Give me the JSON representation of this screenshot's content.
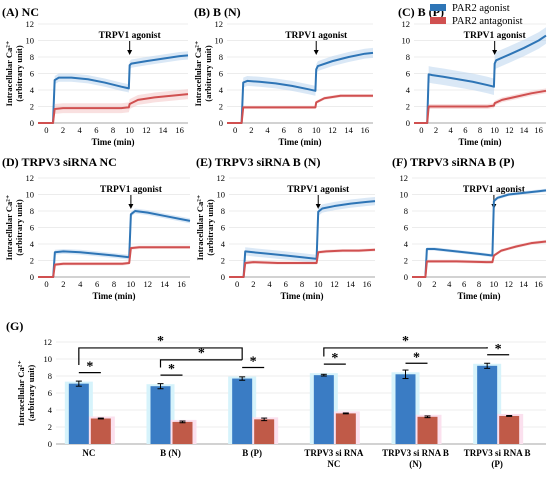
{
  "colors": {
    "agonist": "#2e75b6",
    "antagonist": "#d05050",
    "agonist_bar": "#3a7cc4",
    "antagonist_bar": "#c05a48",
    "agonist_band": "#bcd6ee",
    "antagonist_band": "#f4c6c6",
    "bar_glow_agonist": "#d6f3fb",
    "bar_glow_antagonist": "#fbe0ee"
  },
  "legend": {
    "agonist": "PAR2 agonist",
    "antagonist": "PAR2 antagonist"
  },
  "chart_data": [
    {
      "id": "A",
      "type": "line",
      "title": "(A) NC",
      "xlabel": "Time (min)",
      "ylabel": "Intracellular Ca²⁺ (arbitrary unit)",
      "xlim": [
        -1,
        17
      ],
      "ylim": [
        0,
        12
      ],
      "xticks": [
        0,
        2,
        4,
        6,
        8,
        10,
        12,
        14,
        16
      ],
      "yticks": [
        0,
        2,
        4,
        6,
        8,
        10,
        12
      ],
      "annotation": "TRPV1 agonist",
      "annotation_x": 10,
      "series": [
        {
          "key": "agonist",
          "x": [
            -1,
            0.8,
            1,
            1.5,
            3,
            5,
            7,
            9,
            9.9,
            10,
            10.2,
            12,
            14,
            16,
            17
          ],
          "y": [
            0,
            0,
            5.2,
            5.5,
            5.5,
            5.3,
            4.9,
            4.4,
            4.2,
            7.0,
            7.2,
            7.5,
            7.8,
            8.1,
            8.2
          ],
          "band": 0.5
        },
        {
          "key": "antagonist",
          "x": [
            -1,
            0.8,
            1,
            2,
            5,
            9,
            9.9,
            10,
            11,
            13,
            15,
            17
          ],
          "y": [
            0,
            0,
            1.7,
            1.8,
            1.8,
            1.8,
            1.9,
            2.3,
            2.8,
            3.1,
            3.3,
            3.5
          ],
          "band": 0.6
        }
      ]
    },
    {
      "id": "B",
      "type": "line",
      "title": "(B) B (N)",
      "xlabel": "Time (min)",
      "ylabel": "Intracellular Ca²⁺ (arbitrary unit)",
      "xlim": [
        -1,
        17
      ],
      "ylim": [
        0,
        12
      ],
      "xticks": [
        0,
        2,
        4,
        6,
        8,
        10,
        12,
        14,
        16
      ],
      "yticks": [
        0,
        2,
        4,
        6,
        8,
        10,
        12
      ],
      "annotation": "TRPV1 agonist",
      "annotation_x": 10,
      "series": [
        {
          "key": "agonist",
          "x": [
            -1,
            0.8,
            1,
            1.5,
            3,
            5,
            7,
            9,
            9.9,
            10,
            10.2,
            12,
            14,
            16,
            17
          ],
          "y": [
            0,
            0,
            4.9,
            5.1,
            5.0,
            4.8,
            4.5,
            4.1,
            3.9,
            6.5,
            6.9,
            7.5,
            8.0,
            8.4,
            8.5
          ],
          "band": 0.6
        },
        {
          "key": "antagonist",
          "x": [
            -1,
            0.8,
            1,
            2,
            5,
            9,
            9.9,
            10,
            11,
            13,
            15,
            17
          ],
          "y": [
            0,
            0,
            1.9,
            1.9,
            1.9,
            1.9,
            1.9,
            2.5,
            3.0,
            3.3,
            3.3,
            3.3
          ],
          "band": 0.2
        }
      ]
    },
    {
      "id": "C",
      "type": "line",
      "title": "(C) B (P)",
      "xlabel": "Time (min)",
      "ylabel": "",
      "xlim": [
        -1,
        17
      ],
      "ylim": [
        0,
        12
      ],
      "xticks": [
        0,
        2,
        4,
        6,
        8,
        10,
        12,
        14,
        16
      ],
      "yticks": [
        0,
        2,
        4,
        6,
        8,
        10,
        12
      ],
      "annotation": "TRPV1 agonist",
      "annotation_x": 10,
      "series": [
        {
          "key": "agonist",
          "x": [
            -1,
            0.8,
            1,
            1.5,
            3,
            5,
            7,
            9,
            9.9,
            10,
            10.2,
            12,
            14,
            16,
            17
          ],
          "y": [
            0,
            0,
            5.9,
            5.8,
            5.6,
            5.3,
            5.0,
            4.6,
            4.4,
            7.2,
            7.6,
            8.3,
            9.1,
            10.0,
            10.6
          ],
          "band": 1.0
        },
        {
          "key": "antagonist",
          "x": [
            -1,
            0.8,
            1,
            2,
            5,
            9,
            9.9,
            10,
            11,
            13,
            15,
            17
          ],
          "y": [
            0,
            0,
            2.0,
            2.0,
            2.0,
            2.0,
            2.1,
            2.4,
            2.8,
            3.2,
            3.6,
            3.9
          ],
          "band": 0.3
        }
      ]
    },
    {
      "id": "D",
      "type": "line",
      "title": "(D) TRPV3 siRNA NC",
      "xlabel": "Time (min)",
      "ylabel": "Intracellular Ca²⁺ (arbitrary unit)",
      "xlim": [
        -1,
        17
      ],
      "ylim": [
        0,
        12
      ],
      "xticks": [
        0,
        2,
        4,
        6,
        8,
        10,
        12,
        14,
        16
      ],
      "yticks": [
        0,
        2,
        4,
        6,
        8,
        10,
        12
      ],
      "annotation": "TRPV1 agonist",
      "annotation_x": 10,
      "series": [
        {
          "key": "agonist",
          "x": [
            -1,
            0.8,
            1,
            2,
            4,
            6,
            8,
            9.8,
            10,
            10.5,
            12,
            14,
            16,
            17
          ],
          "y": [
            0,
            0,
            3.0,
            3.1,
            3.0,
            2.8,
            2.6,
            2.4,
            7.6,
            8.0,
            7.8,
            7.4,
            7.0,
            6.8
          ],
          "band": 0.3
        },
        {
          "key": "antagonist",
          "x": [
            -1,
            0.8,
            1,
            2,
            5,
            9,
            9.8,
            10,
            11,
            13,
            15,
            17
          ],
          "y": [
            0,
            0,
            1.5,
            1.6,
            1.6,
            1.6,
            1.7,
            3.5,
            3.6,
            3.6,
            3.6,
            3.6
          ],
          "band": 0.2
        }
      ]
    },
    {
      "id": "E",
      "type": "line",
      "title": "(E) TRPV3 siRNA B (N)",
      "xlabel": "Time (min)",
      "ylabel": "Intracellular Ca²⁺ (arbitrary unit)",
      "xlim": [
        -1,
        17
      ],
      "ylim": [
        0,
        12
      ],
      "xticks": [
        0,
        2,
        4,
        6,
        8,
        10,
        12,
        14,
        16
      ],
      "yticks": [
        0,
        2,
        4,
        6,
        8,
        10,
        12
      ],
      "annotation": "TRPV1 agonist",
      "annotation_x": 10,
      "series": [
        {
          "key": "agonist",
          "x": [
            -1,
            0.8,
            1,
            2,
            4,
            6,
            8,
            9.8,
            10,
            10.5,
            12,
            14,
            16,
            17
          ],
          "y": [
            0,
            0,
            3.1,
            3.0,
            2.8,
            2.6,
            2.4,
            2.2,
            7.9,
            8.3,
            8.6,
            8.9,
            9.1,
            9.2
          ],
          "band": 0.5
        },
        {
          "key": "antagonist",
          "x": [
            -1,
            0.8,
            1,
            2,
            5,
            9,
            9.8,
            10,
            11,
            13,
            15,
            17
          ],
          "y": [
            0,
            0,
            1.7,
            1.8,
            1.7,
            1.7,
            1.7,
            3.0,
            3.1,
            3.2,
            3.2,
            3.3
          ],
          "band": 0.2
        }
      ]
    },
    {
      "id": "F",
      "type": "line",
      "title": "(F) TRPV3 siRNA B (P)",
      "xlabel": "Time (min)",
      "ylabel": "",
      "xlim": [
        -1,
        17
      ],
      "ylim": [
        0,
        12
      ],
      "xticks": [
        0,
        2,
        4,
        6,
        8,
        10,
        12,
        14,
        16
      ],
      "yticks": [
        0,
        2,
        4,
        6,
        8,
        10,
        12
      ],
      "annotation": "TRPV1 agonist",
      "annotation_x": 10,
      "series": [
        {
          "key": "agonist",
          "x": [
            -1,
            0.8,
            1,
            2,
            4,
            6,
            8,
            9.8,
            10,
            10.5,
            12,
            14,
            16,
            17
          ],
          "y": [
            0,
            0,
            3.4,
            3.4,
            3.2,
            3.0,
            2.8,
            2.6,
            9.2,
            9.6,
            10.0,
            10.2,
            10.4,
            10.5
          ],
          "band": 0.2
        },
        {
          "key": "antagonist",
          "x": [
            -1,
            0.8,
            1,
            2,
            5,
            9,
            9.8,
            10,
            11,
            13,
            15,
            17
          ],
          "y": [
            0,
            0,
            1.9,
            1.9,
            1.9,
            1.8,
            1.8,
            2.6,
            3.2,
            3.7,
            4.1,
            4.3
          ],
          "band": 0.2
        }
      ]
    },
    {
      "id": "G",
      "type": "bar",
      "title": "(G)",
      "ylabel": "Intracellular Ca²⁺ (arbitrary unit)",
      "ylim": [
        0,
        12
      ],
      "yticks": [
        0,
        2,
        4,
        6,
        8,
        10,
        12
      ],
      "categories": [
        "NC",
        "B (N)",
        "B (P)",
        "TRPV3 si RNA NC",
        "TRPV3 si RNA B (N)",
        "TRPV3 si RNA B (P)"
      ],
      "category_lines": [
        [
          "NC"
        ],
        [
          "B (N)"
        ],
        [
          "B (P)"
        ],
        [
          "TRPV3 si RNA",
          "NC"
        ],
        [
          "TRPV3 si RNA B",
          "(N)"
        ],
        [
          "TRPV3 si RNA B",
          "(P)"
        ]
      ],
      "series": [
        {
          "key": "agonist",
          "values": [
            7.1,
            6.8,
            7.7,
            8.1,
            8.2,
            9.2
          ],
          "errors": [
            0.3,
            0.3,
            0.2,
            0.1,
            0.5,
            0.3
          ]
        },
        {
          "key": "antagonist",
          "values": [
            3.0,
            2.6,
            2.9,
            3.6,
            3.2,
            3.3
          ],
          "errors": [
            0.05,
            0.1,
            0.15,
            0.05,
            0.1,
            0.05
          ]
        }
      ],
      "significance_marker": "*"
    }
  ]
}
